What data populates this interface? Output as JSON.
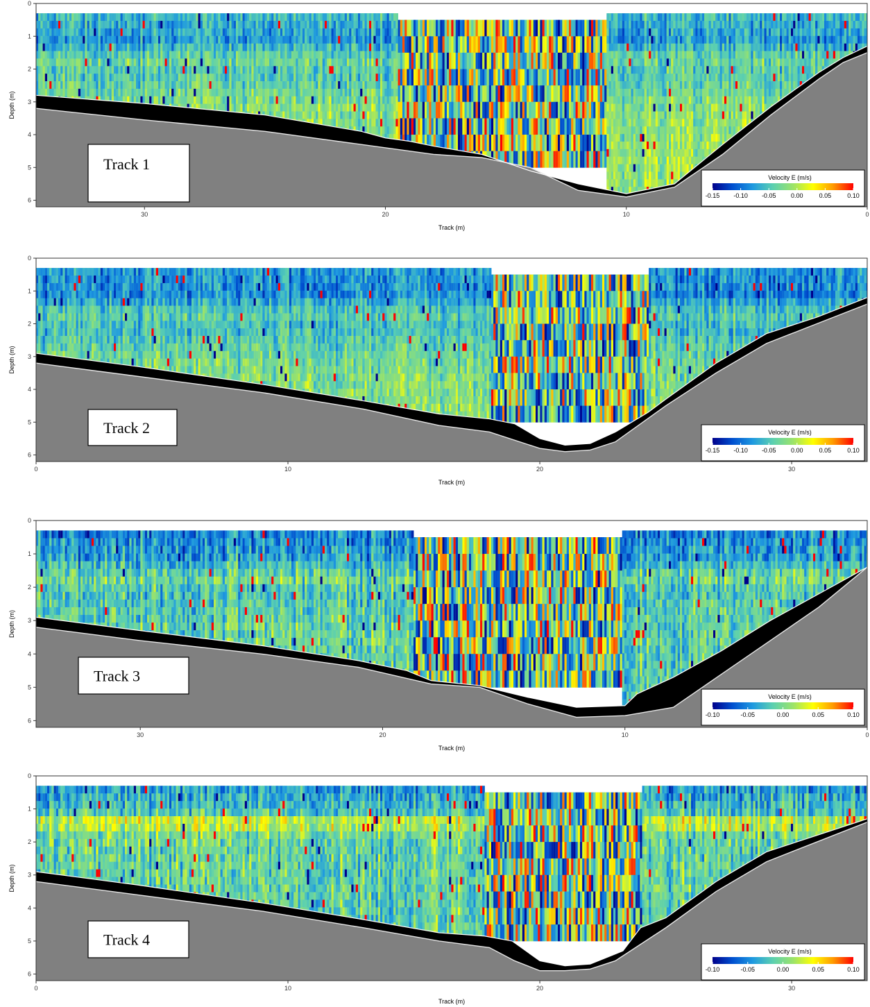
{
  "colorscale": [
    "#00008b",
    "#0050d0",
    "#1f9ae0",
    "#5cd0b0",
    "#9be36a",
    "#ffff00",
    "#ff9900",
    "#ff0000"
  ],
  "surface_colors": {
    "bed": "#808080",
    "blanking": "#000000",
    "outline": "#ffffff"
  },
  "chart_data": [
    {
      "type": "heatmap",
      "panel_label": "Track 1",
      "xlabel": "Track (m)",
      "ylabel": "Depth (m)",
      "xlim": [
        34.5,
        0
      ],
      "ylim": [
        6.2,
        0
      ],
      "x_reversed": true,
      "x_ticks": [
        {
          "v": 30,
          "label": "30"
        },
        {
          "v": 20,
          "label": "20"
        },
        {
          "v": 10,
          "label": "10"
        },
        {
          "v": 0,
          "label": "0"
        }
      ],
      "y_ticks": [
        {
          "v": 0,
          "label": "0"
        },
        {
          "v": 1,
          "label": "1"
        },
        {
          "v": 2,
          "label": "2"
        },
        {
          "v": 3,
          "label": "3"
        },
        {
          "v": 4,
          "label": "4"
        },
        {
          "v": 5,
          "label": "5"
        },
        {
          "v": 6,
          "label": "6"
        }
      ],
      "legend": {
        "title": "Velocity E (m/s)",
        "min": -0.15,
        "max": 0.1,
        "ticks": [
          {
            "v": -0.15,
            "label": "-0.15"
          },
          {
            "v": -0.1,
            "label": "-0.10"
          },
          {
            "v": -0.05,
            "label": "-0.05"
          },
          {
            "v": 0.0,
            "label": "0.00"
          },
          {
            "v": 0.05,
            "label": "0.05"
          },
          {
            "v": 0.1,
            "label": "0.10"
          }
        ],
        "placement": "bottom-right"
      },
      "bed_profile": {
        "x": [
          34.5,
          30,
          25,
          21,
          18,
          16,
          14,
          12,
          10,
          8,
          6,
          4,
          2,
          1,
          0
        ],
        "depth": [
          3.2,
          3.55,
          3.9,
          4.3,
          4.6,
          4.7,
          5.0,
          5.7,
          5.9,
          5.6,
          4.6,
          3.4,
          2.3,
          1.8,
          1.5
        ]
      },
      "blanking_band": {
        "x": [
          34.5,
          30,
          25,
          21,
          20,
          19,
          18,
          16,
          14,
          12,
          10,
          8,
          6,
          4,
          2,
          1,
          0
        ],
        "depth": [
          2.8,
          3.05,
          3.4,
          3.9,
          4.1,
          4.2,
          4.35,
          4.6,
          5.1,
          5.5,
          5.8,
          5.5,
          4.3,
          3.15,
          2.1,
          1.65,
          1.3
        ]
      },
      "data_top": 0.3,
      "noisy_region": {
        "x_range": [
          19.5,
          10.8
        ],
        "depth_range": [
          0.5,
          5.0
        ]
      },
      "velocity_profile": {
        "depth": [
          0.3,
          1.0,
          1.6,
          2.0,
          3.0,
          4.5
        ],
        "velocity": [
          -0.06,
          -0.08,
          -0.03,
          -0.05,
          -0.02,
          -0.01
        ]
      }
    },
    {
      "type": "heatmap",
      "panel_label": "Track 2",
      "xlabel": "Track (m)",
      "ylabel": "Depth (m)",
      "xlim": [
        0,
        33
      ],
      "ylim": [
        6.2,
        0
      ],
      "x_reversed": false,
      "x_ticks": [
        {
          "v": 0,
          "label": "0"
        },
        {
          "v": 10,
          "label": "10"
        },
        {
          "v": 20,
          "label": "20"
        },
        {
          "v": 30,
          "label": "30"
        }
      ],
      "y_ticks": [
        {
          "v": 0,
          "label": "0"
        },
        {
          "v": 1,
          "label": "1"
        },
        {
          "v": 2,
          "label": "2"
        },
        {
          "v": 3,
          "label": "3"
        },
        {
          "v": 4,
          "label": "4"
        },
        {
          "v": 5,
          "label": "5"
        },
        {
          "v": 6,
          "label": "6"
        }
      ],
      "legend": {
        "title": "Velocity E (m/s)",
        "min": -0.15,
        "max": 0.1,
        "ticks": [
          {
            "v": -0.15,
            "label": "-0.15"
          },
          {
            "v": -0.1,
            "label": "-0.10"
          },
          {
            "v": -0.05,
            "label": "-0.05"
          },
          {
            "v": 0.0,
            "label": "0.00"
          },
          {
            "v": 0.05,
            "label": "0.05"
          },
          {
            "v": 0.1,
            "label": "0.10"
          }
        ],
        "placement": "bottom-right"
      },
      "bed_profile": {
        "x": [
          0,
          4,
          9,
          13,
          16,
          18,
          20,
          21,
          22,
          23,
          25,
          27,
          29,
          31,
          33
        ],
        "depth": [
          3.2,
          3.6,
          4.1,
          4.6,
          5.1,
          5.3,
          5.8,
          5.9,
          5.85,
          5.6,
          4.5,
          3.5,
          2.6,
          2.0,
          1.4
        ]
      },
      "blanking_band": {
        "x": [
          0,
          4,
          9,
          13,
          16,
          18,
          19,
          20,
          21,
          22,
          23,
          24.3,
          25,
          27,
          29,
          31,
          33
        ],
        "depth": [
          2.9,
          3.3,
          3.85,
          4.35,
          4.75,
          4.9,
          5.05,
          5.5,
          5.7,
          5.65,
          5.3,
          4.7,
          4.3,
          3.2,
          2.3,
          1.8,
          1.2
        ]
      },
      "data_top": 0.3,
      "noisy_region": {
        "x_range": [
          18.1,
          24.3
        ],
        "depth_range": [
          0.5,
          5.0
        ]
      },
      "velocity_profile": {
        "depth": [
          0.3,
          1.0,
          1.6,
          2.0,
          3.0,
          4.5
        ],
        "velocity": [
          -0.08,
          -0.09,
          -0.04,
          -0.06,
          -0.03,
          -0.02
        ]
      }
    },
    {
      "type": "heatmap",
      "panel_label": "Track 3",
      "xlabel": "Track (m)",
      "ylabel": "Depth (m)",
      "xlim": [
        34.3,
        0
      ],
      "ylim": [
        6.2,
        0
      ],
      "x_reversed": true,
      "x_ticks": [
        {
          "v": 30,
          "label": "30"
        },
        {
          "v": 20,
          "label": "20"
        },
        {
          "v": 10,
          "label": "10"
        },
        {
          "v": 0,
          "label": "0"
        }
      ],
      "y_ticks": [
        {
          "v": 0,
          "label": "0"
        },
        {
          "v": 1,
          "label": "1"
        },
        {
          "v": 2,
          "label": "2"
        },
        {
          "v": 3,
          "label": "3"
        },
        {
          "v": 4,
          "label": "4"
        },
        {
          "v": 5,
          "label": "5"
        },
        {
          "v": 6,
          "label": "6"
        }
      ],
      "legend": {
        "title": "Velocity E (m/s)",
        "min": -0.1,
        "max": 0.1,
        "ticks": [
          {
            "v": -0.1,
            "label": "-0.10"
          },
          {
            "v": -0.05,
            "label": "-0.05"
          },
          {
            "v": 0.0,
            "label": "0.00"
          },
          {
            "v": 0.05,
            "label": "0.05"
          },
          {
            "v": 0.1,
            "label": "0.10"
          }
        ],
        "placement": "bottom-right"
      },
      "bed_profile": {
        "x": [
          34.3,
          30,
          25,
          21,
          18,
          16,
          14,
          12,
          10,
          8,
          6,
          4,
          2,
          0
        ],
        "depth": [
          3.2,
          3.6,
          4.0,
          4.4,
          4.9,
          5.0,
          5.5,
          5.9,
          5.85,
          5.6,
          4.6,
          3.6,
          2.6,
          1.4
        ]
      },
      "blanking_band": {
        "x": [
          34.3,
          30,
          25,
          21,
          19,
          18,
          16,
          14,
          12,
          10,
          9.5,
          8,
          6,
          4,
          2,
          0
        ],
        "depth": [
          2.9,
          3.3,
          3.75,
          4.2,
          4.5,
          4.8,
          4.95,
          5.3,
          5.6,
          5.55,
          5.2,
          4.7,
          3.9,
          3.0,
          2.2,
          1.4
        ]
      },
      "data_top": 0.3,
      "noisy_region": {
        "x_range": [
          18.7,
          10.1
        ],
        "depth_range": [
          0.5,
          5.0
        ]
      },
      "velocity_profile": {
        "depth": [
          0.3,
          1.0,
          1.6,
          2.0,
          3.0,
          4.5
        ],
        "velocity": [
          -0.05,
          -0.04,
          0.0,
          -0.02,
          -0.01,
          -0.01
        ]
      }
    },
    {
      "type": "heatmap",
      "panel_label": "Track 4",
      "xlabel": "Track (m)",
      "ylabel": "Depth (m)",
      "xlim": [
        0,
        33
      ],
      "ylim": [
        6.2,
        0
      ],
      "x_reversed": false,
      "x_ticks": [
        {
          "v": 0,
          "label": "0"
        },
        {
          "v": 10,
          "label": "10"
        },
        {
          "v": 20,
          "label": "20"
        },
        {
          "v": 30,
          "label": "30"
        }
      ],
      "y_ticks": [
        {
          "v": 0,
          "label": "0"
        },
        {
          "v": 1,
          "label": "1"
        },
        {
          "v": 2,
          "label": "2"
        },
        {
          "v": 3,
          "label": "3"
        },
        {
          "v": 4,
          "label": "4"
        },
        {
          "v": 5,
          "label": "5"
        },
        {
          "v": 6,
          "label": "6"
        }
      ],
      "legend": {
        "title": "Velocity E (m/s)",
        "min": -0.1,
        "max": 0.1,
        "ticks": [
          {
            "v": -0.1,
            "label": "-0.10"
          },
          {
            "v": -0.05,
            "label": "-0.05"
          },
          {
            "v": 0.0,
            "label": "0.00"
          },
          {
            "v": 0.05,
            "label": "0.05"
          },
          {
            "v": 0.1,
            "label": "0.10"
          }
        ],
        "placement": "bottom-right"
      },
      "bed_profile": {
        "x": [
          0,
          4,
          9,
          13,
          16,
          18,
          19,
          20,
          21,
          22,
          23,
          25,
          27,
          29,
          31,
          33
        ],
        "depth": [
          3.2,
          3.6,
          4.1,
          4.6,
          5.0,
          5.2,
          5.6,
          5.9,
          5.9,
          5.85,
          5.6,
          4.6,
          3.5,
          2.6,
          2.0,
          1.4
        ]
      },
      "blanking_band": {
        "x": [
          0,
          4,
          9,
          13,
          16,
          17.8,
          18.9,
          20,
          21,
          22,
          23.3,
          24,
          25,
          27,
          29,
          31,
          33
        ],
        "depth": [
          2.9,
          3.3,
          3.85,
          4.35,
          4.75,
          4.85,
          5.0,
          5.6,
          5.75,
          5.7,
          5.3,
          4.6,
          4.3,
          3.2,
          2.3,
          1.8,
          1.3
        ]
      },
      "data_top": 0.3,
      "noisy_region": {
        "x_range": [
          17.8,
          24.1
        ],
        "depth_range": [
          0.5,
          5.0
        ]
      },
      "velocity_profile": {
        "depth": [
          0.3,
          1.0,
          1.3,
          1.6,
          2.0,
          3.0,
          4.5
        ],
        "velocity": [
          -0.04,
          -0.02,
          0.04,
          0.0,
          -0.01,
          -0.01,
          -0.01
        ]
      }
    }
  ]
}
